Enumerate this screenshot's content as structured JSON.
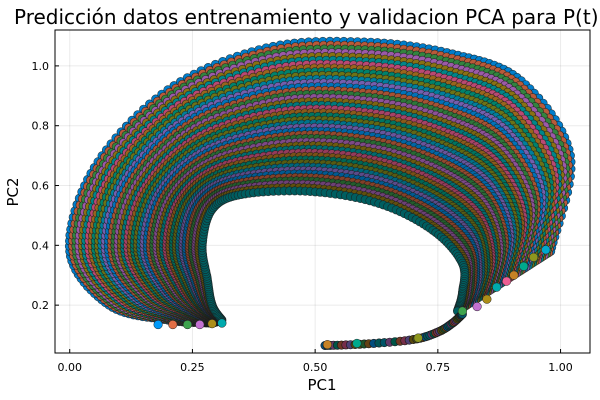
{
  "chart_data": {
    "type": "scatter",
    "title": "Predicción datos entrenamiento y validacion PCA para P(t)",
    "xlabel": "PC1",
    "ylabel": "PC2",
    "xlim": [
      -0.03,
      1.06
    ],
    "ylim": [
      0.04,
      1.12
    ],
    "grid": true,
    "legend": "none",
    "x_ticks": [
      0.0,
      0.25,
      0.5,
      0.75,
      1.0
    ],
    "x_tick_labels": [
      "0.00",
      "0.25",
      "0.50",
      "0.75",
      "1.00"
    ],
    "y_ticks": [
      0.2,
      0.4,
      0.6,
      0.8,
      1.0
    ],
    "y_tick_labels": [
      "0.2",
      "0.4",
      "0.6",
      "0.8",
      "1.0"
    ],
    "palette": [
      "#009af9",
      "#e26f46",
      "#3ea44e",
      "#c271d2",
      "#ac8e18",
      "#00aaae",
      "#ed5e93",
      "#c68225",
      "#00a98d",
      "#8e971e",
      "#00a9cd",
      "#9b7fe9"
    ],
    "trajectory_envelope": {
      "outer": [
        [
          0.29,
          0.14
        ],
        [
          0.2,
          0.15
        ],
        [
          0.08,
          0.2
        ],
        [
          0.0,
          0.38
        ],
        [
          0.05,
          0.66
        ],
        [
          0.2,
          0.92
        ],
        [
          0.4,
          1.06
        ],
        [
          0.6,
          1.08
        ],
        [
          0.78,
          1.04
        ],
        [
          0.92,
          0.95
        ],
        [
          1.02,
          0.7
        ],
        [
          0.98,
          0.38
        ]
      ],
      "inner": [
        [
          0.31,
          0.15
        ],
        [
          0.29,
          0.2
        ],
        [
          0.28,
          0.29
        ],
        [
          0.27,
          0.4
        ],
        [
          0.29,
          0.52
        ],
        [
          0.35,
          0.57
        ],
        [
          0.49,
          0.58
        ],
        [
          0.63,
          0.54
        ],
        [
          0.74,
          0.45
        ],
        [
          0.8,
          0.34
        ],
        [
          0.8,
          0.24
        ],
        [
          0.79,
          0.18
        ]
      ]
    },
    "lower_tail": {
      "x": [
        0.52,
        0.6,
        0.7,
        0.75,
        0.78,
        0.8
      ],
      "y": [
        0.065,
        0.07,
        0.085,
        0.11,
        0.14,
        0.17
      ]
    },
    "endpoints_left": {
      "x": [
        0.18,
        0.21,
        0.24,
        0.265,
        0.29,
        0.31
      ],
      "y": [
        0.135,
        0.135,
        0.135,
        0.135,
        0.138,
        0.14
      ]
    },
    "endpoints_right": {
      "x": [
        0.8,
        0.83,
        0.85,
        0.87,
        0.89,
        0.905,
        0.925,
        0.945,
        0.97
      ],
      "y": [
        0.18,
        0.195,
        0.22,
        0.26,
        0.28,
        0.3,
        0.33,
        0.36,
        0.385
      ]
    },
    "endpoints_bottom": {
      "x": [
        0.525,
        0.585,
        0.71
      ],
      "y": [
        0.068,
        0.072,
        0.09
      ]
    }
  }
}
